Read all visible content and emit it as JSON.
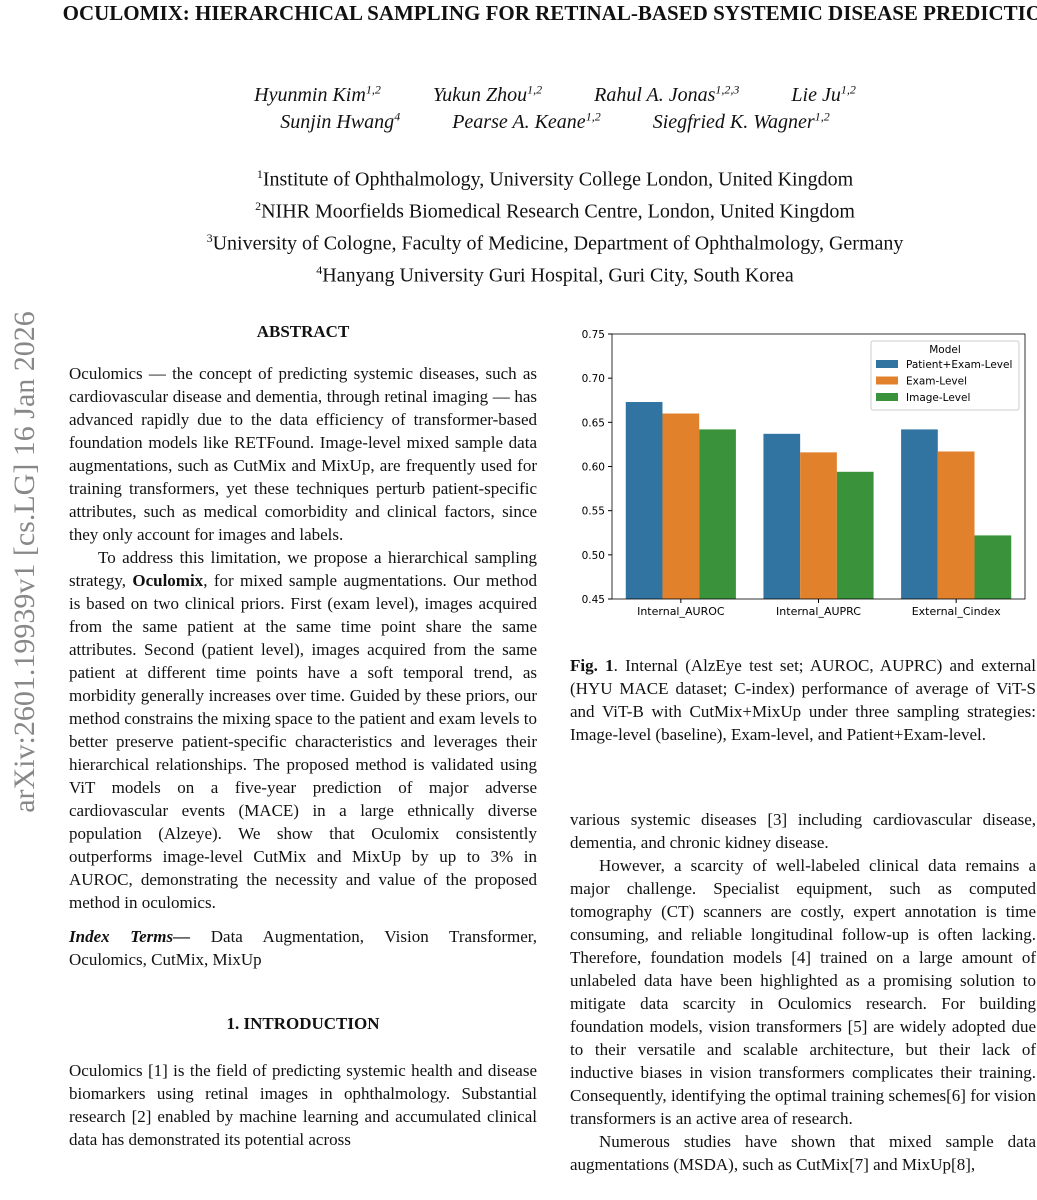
{
  "arxiv_id": "arXiv:2601.19939v1  [cs.LG]  16 Jan 2026",
  "title": "OCULOMIX: HIERARCHICAL SAMPLING FOR RETINAL-BASED SYSTEMIC DISEASE PREDICTION",
  "authors_row1": [
    {
      "name": "Hyunmin Kim",
      "sup": "1,2"
    },
    {
      "name": "Yukun Zhou",
      "sup": "1,2"
    },
    {
      "name": "Rahul A. Jonas",
      "sup": "1,2,3"
    },
    {
      "name": "Lie Ju",
      "sup": "1,2"
    }
  ],
  "authors_row2": [
    {
      "name": "Sunjin Hwang",
      "sup": "4"
    },
    {
      "name": "Pearse A. Keane",
      "sup": "1,2"
    },
    {
      "name": "Siegfried K. Wagner",
      "sup": "1,2"
    }
  ],
  "affiliations": [
    {
      "sup": "1",
      "text": "Institute of Ophthalmology, University College London, United Kingdom"
    },
    {
      "sup": "2",
      "text": "NIHR Moorfields Biomedical Research Centre, London, United Kingdom"
    },
    {
      "sup": "3",
      "text": "University of Cologne, Faculty of Medicine, Department of Ophthalmology, Germany"
    },
    {
      "sup": "4",
      "text": "Hanyang University Guri Hospital, Guri City, South Korea"
    }
  ],
  "abstract_heading": "ABSTRACT",
  "abstract_p1": "Oculomics — the concept of predicting systemic diseases, such as cardiovascular disease and dementia, through retinal imaging — has advanced rapidly due to the data efficiency of transformer-based foundation models like RETFound. Image-level mixed sample data augmentations, such as CutMix and MixUp, are frequently used for training transformers, yet these techniques perturb patient-specific attributes, such as medical comorbidity and clinical factors, since they only account for images and labels.",
  "abstract_p2_a": "To address this limitation, we propose a hierarchical sampling strategy, ",
  "abstract_p2_bold": "Oculomix",
  "abstract_p2_b": ", for mixed sample augmentations. Our method is based on two clinical priors. First (exam level), images acquired from the same patient at the same time point share the same attributes. Second (patient level), images acquired from the same patient at different time points have a soft temporal trend, as morbidity generally increases over time. Guided by these priors, our method constrains the mixing space to the patient and exam levels to better preserve patient-specific characteristics and leverages their hierarchical relationships. The proposed method is validated using ViT models on a five-year prediction of major adverse cardiovascular events (MACE) in a large ethnically diverse population (Alzeye). We show that Oculomix consistently outperforms image-level CutMix and MixUp by up to 3% in AUROC, demonstrating the necessity and value of the proposed method in oculomics.",
  "index_terms_label": "Index Terms—",
  "index_terms": " Data Augmentation, Vision Transformer, Oculomics, CutMix, MixUp",
  "intro_heading": "1.  INTRODUCTION",
  "intro_p1": "Oculomics [1] is the field of predicting systemic health and disease biomarkers using retinal images in ophthalmology. Substantial research [2] enabled by machine learning and accumulated clinical data has demonstrated its potential across",
  "right_p1": "various systemic diseases [3] including cardiovascular disease, dementia, and chronic kidney disease.",
  "right_p2": "However, a scarcity of well-labeled clinical data remains a major challenge. Specialist equipment, such as computed tomography (CT) scanners are costly, expert annotation is time consuming, and reliable longitudinal follow-up is often lacking. Therefore, foundation models [4] trained on a large amount of unlabeled data have been highlighted as a promising solution to mitigate data scarcity in Oculomics research. For building foundation models, vision transformers [5] are widely adopted due to their versatile and scalable architecture, but their lack of inductive biases in vision transformers complicates their training. Consequently, identifying the optimal training schemes[6] for vision transformers is an active area of research.",
  "right_p3": "Numerous studies have shown that mixed sample data augmentations (MSDA), such as CutMix[7] and MixUp[8],",
  "caption_label": "Fig. 1",
  "caption_text": ".  Internal (AlzEye test set; AUROC, AUPRC) and external (HYU MACE dataset; C-index) performance of average of ViT-S and ViT-B with CutMix+MixUp under three sampling strategies: Image-level (baseline), Exam-level, and Patient+Exam-level.",
  "chart_data": {
    "type": "bar",
    "categories": [
      "Internal_AUROC",
      "Internal_AUPRC",
      "External_Cindex"
    ],
    "series": [
      {
        "name": "Patient+Exam-Level",
        "color": "#3274a1",
        "values": [
          0.673,
          0.637,
          0.642
        ]
      },
      {
        "name": "Exam-Level",
        "color": "#e1812c",
        "values": [
          0.66,
          0.616,
          0.617
        ]
      },
      {
        "name": "Image-Level",
        "color": "#3a923a",
        "values": [
          0.642,
          0.594,
          0.522
        ]
      }
    ],
    "legend_title": "Model",
    "legend_position": "top-right",
    "ylim": [
      0.45,
      0.75
    ],
    "yticks": [
      "0.45",
      "0.50",
      "0.55",
      "0.60",
      "0.65",
      "0.70",
      "0.75"
    ],
    "grid": false
  }
}
